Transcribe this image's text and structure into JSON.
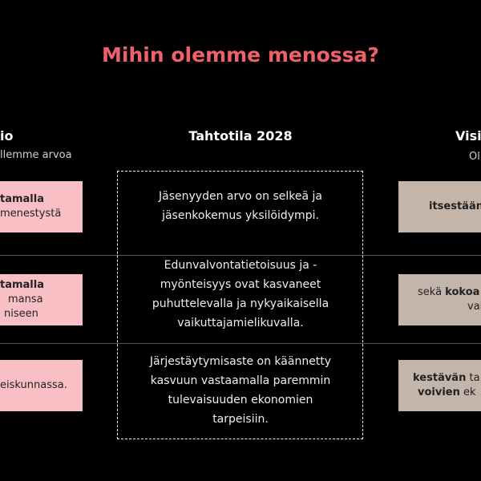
{
  "title": "Mihin olemme menossa?",
  "left_column": {
    "heading": "io",
    "subheading": "llemme arvoa",
    "boxes": [
      {
        "lines": [
          [
            {
              "text": "tamalla",
              "bold": true
            }
          ],
          [
            {
              "text": "menestystä",
              "bold": false
            }
          ]
        ]
      },
      {
        "lines": [
          [
            {
              "text": "tamalla",
              "bold": true
            }
          ],
          [
            {
              "text": "mansa",
              "bold": false
            }
          ],
          [
            {
              "text": "niseen",
              "bold": false
            }
          ]
        ]
      },
      {
        "lines": [
          [
            {
              "text": "eiskunnassa.",
              "bold": false
            }
          ]
        ]
      }
    ]
  },
  "center_column": {
    "heading": "Tahtotila 2028",
    "paragraphs": [
      [
        "Jäsenyyden arvo on selkeä ja",
        "jäsenkokemus yksilöidympi."
      ],
      [
        "Edunvalvontatietoisuus ja -",
        "myönteisyys ovat kasvaneet",
        "puhuttelevalla ja nykyaikaisella",
        "vaikuttajamielikuvalla."
      ],
      [
        "Järjestäytymisaste on käännetty",
        "kasvuun vastaamalla paremmin",
        "tulevaisuuden ekonomien",
        "tarpeisiin."
      ]
    ]
  },
  "right_column": {
    "heading": "Visi",
    "subheading": "Ol",
    "boxes": [
      {
        "lines": [
          [
            {
              "text": "itsestään",
              "bold": true
            }
          ]
        ]
      },
      {
        "lines": [
          [
            {
              "text": "sekä ",
              "bold": false
            },
            {
              "text": "kokoa",
              "bold": true
            }
          ],
          [
            {
              "text": "vai",
              "bold": false
            }
          ]
        ]
      },
      {
        "lines": [
          [
            {
              "text": "kestävän",
              "bold": true
            },
            {
              "text": " ta",
              "bold": false
            }
          ],
          [
            {
              "text": "voivien",
              "bold": true
            },
            {
              "text": " ek",
              "bold": false
            }
          ]
        ]
      }
    ]
  }
}
